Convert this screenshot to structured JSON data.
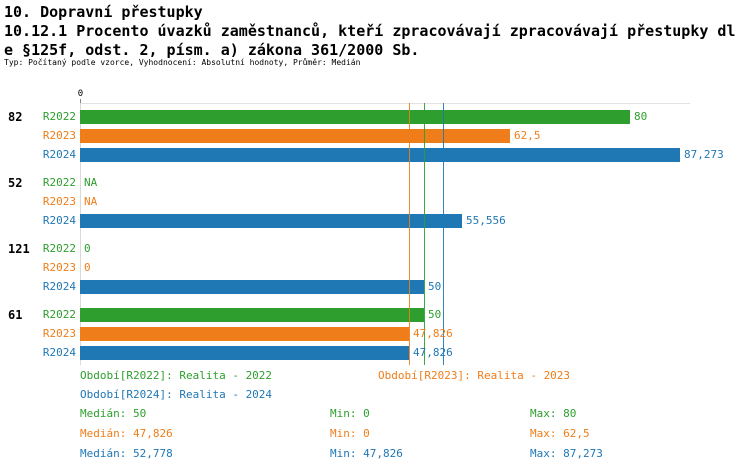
{
  "title": {
    "line1": "10. Dopravní přestupky",
    "line2": "10.12.1 Procento úvazků zaměstnanců, kteří zpracovávají zpracovávají přestupky dl",
    "line3": "e §125f, odst. 2, písm. a) zákona 361/2000 Sb.",
    "meta": "Typ: Počítaný podle vzorce, Vyhodnocení: Absolutní hodnoty, Průměr: Medián"
  },
  "chart_data": {
    "type": "bar",
    "orientation": "horizontal",
    "x_axis": {
      "origin_label": "0",
      "min": 0,
      "max": 88.7
    },
    "series_colors": {
      "R2022": "#2e9e2e",
      "R2023": "#ef7d1a",
      "R2024": "#1f77b4"
    },
    "groups": [
      {
        "label": "82",
        "bars": [
          {
            "series": "R2022",
            "value": 80,
            "label": "80"
          },
          {
            "series": "R2023",
            "value": 62.5,
            "label": "62,5"
          },
          {
            "series": "R2024",
            "value": 87.273,
            "label": "87,273"
          }
        ]
      },
      {
        "label": "52",
        "bars": [
          {
            "series": "R2022",
            "value": null,
            "label": "NA"
          },
          {
            "series": "R2023",
            "value": null,
            "label": "NA"
          },
          {
            "series": "R2024",
            "value": 55.556,
            "label": "55,556"
          }
        ]
      },
      {
        "label": "121",
        "bars": [
          {
            "series": "R2022",
            "value": 0,
            "label": "0"
          },
          {
            "series": "R2023",
            "value": 0,
            "label": "0"
          },
          {
            "series": "R2024",
            "value": 50,
            "label": "50"
          }
        ]
      },
      {
        "label": "61",
        "bars": [
          {
            "series": "R2022",
            "value": 50,
            "label": "50"
          },
          {
            "series": "R2023",
            "value": 47.826,
            "label": "47,826"
          },
          {
            "series": "R2024",
            "value": 47.826,
            "label": "47,826"
          }
        ]
      }
    ],
    "reference_lines": [
      {
        "series": "R2022",
        "value": 50
      },
      {
        "series": "R2023",
        "value": 47.826
      },
      {
        "series": "R2024",
        "value": 52.778
      }
    ],
    "legend": [
      {
        "series": "R2022",
        "label": "Období[R2022]: Realita - 2022"
      },
      {
        "series": "R2023",
        "label": "Období[R2023]: Realita - 2023"
      },
      {
        "series": "R2024",
        "label": "Období[R2024]: Realita - 2024"
      }
    ],
    "stats": [
      {
        "series": "R2022",
        "median": "Medián: 50",
        "min": "Min: 0",
        "max": "Max: 80"
      },
      {
        "series": "R2023",
        "median": "Medián: 47,826",
        "min": "Min: 0",
        "max": "Max: 62,5"
      },
      {
        "series": "R2024",
        "median": "Medián: 52,778",
        "min": "Min: 47,826",
        "max": "Max: 87,273"
      }
    ]
  }
}
